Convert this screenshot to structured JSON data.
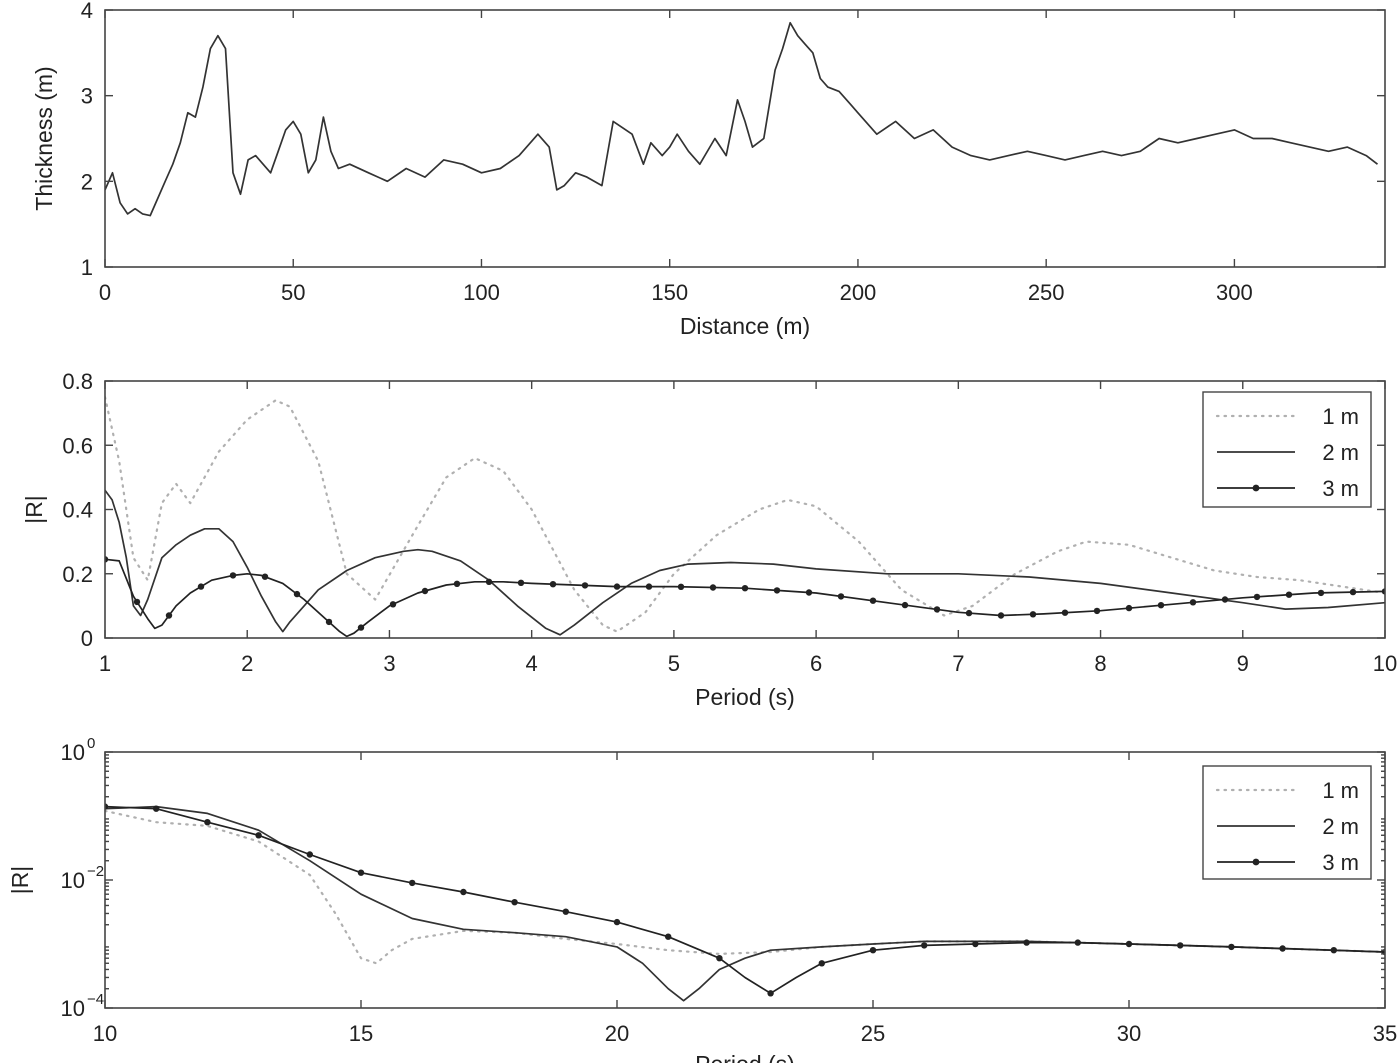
{
  "chart_data": [
    {
      "type": "line",
      "xlabel": "Distance (m)",
      "ylabel": "Thickness (m)",
      "xlim": [
        0,
        340
      ],
      "ylim": [
        1,
        4
      ],
      "xticks": [
        0,
        50,
        100,
        150,
        200,
        250,
        300
      ],
      "yticks": [
        1,
        2,
        3,
        4
      ],
      "grid": false,
      "series": [
        {
          "color": "#333333",
          "style": "solid",
          "x": [
            0,
            2,
            4,
            6,
            8,
            10,
            12,
            14,
            16,
            18,
            20,
            22,
            24,
            26,
            28,
            30,
            32,
            34,
            36,
            38,
            40,
            42,
            44,
            46,
            48,
            50,
            52,
            54,
            56,
            58,
            60,
            62,
            65,
            70,
            75,
            80,
            85,
            90,
            95,
            100,
            105,
            110,
            115,
            118,
            120,
            122,
            125,
            128,
            132,
            135,
            140,
            143,
            145,
            148,
            150,
            152,
            155,
            158,
            162,
            165,
            168,
            170,
            172,
            175,
            178,
            180,
            182,
            184,
            186,
            188,
            190,
            192,
            195,
            198,
            200,
            205,
            210,
            215,
            220,
            225,
            230,
            235,
            240,
            245,
            250,
            255,
            260,
            265,
            270,
            275,
            280,
            285,
            290,
            295,
            300,
            305,
            310,
            315,
            320,
            325,
            330,
            335,
            338
          ],
          "values": [
            1.9,
            2.1,
            1.75,
            1.62,
            1.68,
            1.62,
            1.6,
            1.8,
            2.0,
            2.2,
            2.45,
            2.8,
            2.75,
            3.1,
            3.55,
            3.7,
            3.55,
            2.1,
            1.85,
            2.25,
            2.3,
            2.2,
            2.1,
            2.35,
            2.6,
            2.7,
            2.55,
            2.1,
            2.25,
            2.75,
            2.35,
            2.15,
            2.2,
            2.1,
            2.0,
            2.15,
            2.05,
            2.25,
            2.2,
            2.1,
            2.15,
            2.3,
            2.55,
            2.4,
            1.9,
            1.95,
            2.1,
            2.05,
            1.95,
            2.7,
            2.55,
            2.2,
            2.45,
            2.3,
            2.4,
            2.55,
            2.35,
            2.2,
            2.5,
            2.3,
            2.95,
            2.7,
            2.4,
            2.5,
            3.3,
            3.55,
            3.85,
            3.7,
            3.6,
            3.5,
            3.2,
            3.1,
            3.05,
            2.9,
            2.8,
            2.55,
            2.7,
            2.5,
            2.6,
            2.4,
            2.3,
            2.25,
            2.3,
            2.35,
            2.3,
            2.25,
            2.3,
            2.35,
            2.3,
            2.35,
            2.5,
            2.45,
            2.5,
            2.55,
            2.6,
            2.5,
            2.5,
            2.45,
            2.4,
            2.35,
            2.4,
            2.3,
            2.2
          ]
        }
      ]
    },
    {
      "type": "line",
      "xlabel": "Period (s)",
      "ylabel": "|R|",
      "xlim": [
        1,
        10
      ],
      "ylim": [
        0,
        0.8
      ],
      "xticks": [
        1,
        2,
        3,
        4,
        5,
        6,
        7,
        8,
        9,
        10
      ],
      "yticks": [
        0,
        0.2,
        0.4,
        0.6,
        0.8
      ],
      "grid": false,
      "legend": "top-right",
      "series": [
        {
          "name": "1 m",
          "color": "#b0b0b0",
          "style": "dotted",
          "x": [
            1,
            1.1,
            1.2,
            1.3,
            1.4,
            1.5,
            1.6,
            1.8,
            2.0,
            2.2,
            2.3,
            2.5,
            2.7,
            2.9,
            3.2,
            3.4,
            3.6,
            3.8,
            4.0,
            4.3,
            4.5,
            4.6,
            4.8,
            5.0,
            5.3,
            5.6,
            5.8,
            6.0,
            6.3,
            6.6,
            6.9,
            7.1,
            7.4,
            7.7,
            7.9,
            8.2,
            8.5,
            8.8,
            9.1,
            9.4,
            9.7,
            10
          ],
          "values": [
            0.75,
            0.55,
            0.25,
            0.18,
            0.42,
            0.48,
            0.42,
            0.58,
            0.68,
            0.74,
            0.72,
            0.55,
            0.2,
            0.12,
            0.35,
            0.5,
            0.56,
            0.52,
            0.4,
            0.15,
            0.04,
            0.02,
            0.08,
            0.2,
            0.32,
            0.4,
            0.43,
            0.41,
            0.3,
            0.15,
            0.07,
            0.1,
            0.2,
            0.27,
            0.3,
            0.29,
            0.25,
            0.21,
            0.19,
            0.18,
            0.16,
            0.14
          ]
        },
        {
          "name": "2 m",
          "color": "#333333",
          "style": "solid",
          "x": [
            1,
            1.05,
            1.1,
            1.15,
            1.2,
            1.25,
            1.3,
            1.4,
            1.5,
            1.6,
            1.7,
            1.8,
            1.9,
            2.0,
            2.1,
            2.2,
            2.25,
            2.3,
            2.4,
            2.5,
            2.7,
            2.9,
            3.1,
            3.2,
            3.3,
            3.5,
            3.7,
            3.9,
            4.1,
            4.2,
            4.3,
            4.5,
            4.7,
            4.9,
            5.1,
            5.4,
            5.7,
            6.0,
            6.5,
            7.0,
            7.5,
            8.0,
            8.5,
            9.0,
            9.3,
            9.6,
            10
          ],
          "values": [
            0.46,
            0.43,
            0.36,
            0.25,
            0.1,
            0.07,
            0.12,
            0.25,
            0.29,
            0.32,
            0.34,
            0.34,
            0.3,
            0.22,
            0.13,
            0.05,
            0.02,
            0.05,
            0.1,
            0.15,
            0.21,
            0.25,
            0.27,
            0.275,
            0.27,
            0.24,
            0.18,
            0.1,
            0.03,
            0.01,
            0.04,
            0.11,
            0.17,
            0.21,
            0.23,
            0.235,
            0.23,
            0.215,
            0.2,
            0.2,
            0.19,
            0.17,
            0.14,
            0.11,
            0.09,
            0.095,
            0.11
          ]
        },
        {
          "name": "3 m",
          "color": "#222222",
          "style": "solid-dots",
          "x": [
            1,
            1.1,
            1.2,
            1.3,
            1.35,
            1.4,
            1.5,
            1.6,
            1.75,
            1.9,
            2.0,
            2.1,
            2.25,
            2.4,
            2.55,
            2.65,
            2.7,
            2.75,
            2.85,
            3.0,
            3.2,
            3.4,
            3.6,
            3.8,
            4.0,
            4.3,
            4.6,
            5.0,
            5.5,
            6.0,
            6.5,
            7.0,
            7.3,
            7.6,
            8.0,
            8.5,
            9.0,
            9.5,
            10
          ],
          "values": [
            0.245,
            0.24,
            0.13,
            0.06,
            0.03,
            0.04,
            0.1,
            0.14,
            0.18,
            0.195,
            0.2,
            0.195,
            0.17,
            0.12,
            0.06,
            0.02,
            0.005,
            0.015,
            0.05,
            0.1,
            0.14,
            0.165,
            0.175,
            0.175,
            0.17,
            0.165,
            0.16,
            0.16,
            0.155,
            0.14,
            0.11,
            0.08,
            0.07,
            0.075,
            0.085,
            0.105,
            0.125,
            0.14,
            0.145
          ]
        }
      ]
    },
    {
      "type": "line",
      "xlabel": "Period (s)",
      "ylabel": "|R|",
      "xlim": [
        10,
        35
      ],
      "ylim": [
        0.0001,
        1
      ],
      "yscale": "log",
      "xticks": [
        10,
        15,
        20,
        25,
        30,
        35
      ],
      "yticks": [
        0.0001,
        0.01,
        1
      ],
      "ytick_labels": [
        {
          "base": "10",
          "exp": "−4"
        },
        {
          "base": "10",
          "exp": "−2"
        },
        {
          "base": "10",
          "exp": "0"
        }
      ],
      "grid": false,
      "legend": "top-right",
      "series": [
        {
          "name": "1 m",
          "color": "#b0b0b0",
          "style": "dotted",
          "x": [
            10,
            11,
            12,
            13,
            14,
            14.5,
            15,
            15.3,
            15.6,
            16,
            17,
            18,
            19,
            20,
            21,
            22,
            23,
            24,
            25,
            26,
            28,
            30,
            32,
            35
          ],
          "values": [
            0.12,
            0.08,
            0.07,
            0.04,
            0.012,
            0.003,
            0.0006,
            0.0005,
            0.0008,
            0.0012,
            0.0016,
            0.0015,
            0.0012,
            0.001,
            0.0008,
            0.0007,
            0.00075,
            0.0009,
            0.001,
            0.0011,
            0.0011,
            0.001,
            0.0009,
            0.00075
          ]
        },
        {
          "name": "2 m",
          "color": "#333333",
          "style": "solid",
          "x": [
            10,
            11,
            12,
            13,
            14,
            15,
            16,
            17,
            18,
            19,
            20,
            20.5,
            21,
            21.3,
            21.6,
            22,
            22.5,
            23,
            24,
            25,
            26,
            27,
            28,
            30,
            32,
            35
          ],
          "values": [
            0.13,
            0.14,
            0.11,
            0.06,
            0.02,
            0.006,
            0.0025,
            0.0017,
            0.0015,
            0.0013,
            0.0009,
            0.0005,
            0.0002,
            0.00013,
            0.0002,
            0.0004,
            0.0006,
            0.0008,
            0.0009,
            0.001,
            0.0011,
            0.0011,
            0.0011,
            0.001,
            0.0009,
            0.00075
          ]
        },
        {
          "name": "3 m",
          "color": "#222222",
          "style": "solid-dots",
          "x": [
            10,
            11,
            12,
            13,
            14,
            15,
            16,
            17,
            18,
            19,
            20,
            21,
            22,
            22.5,
            23,
            23.5,
            24,
            25,
            26,
            27,
            28,
            29,
            30,
            31,
            32,
            33,
            34,
            35
          ],
          "values": [
            0.14,
            0.13,
            0.08,
            0.05,
            0.025,
            0.013,
            0.009,
            0.0065,
            0.0045,
            0.0032,
            0.0022,
            0.0013,
            0.0006,
            0.0003,
            0.00017,
            0.0003,
            0.0005,
            0.0008,
            0.00095,
            0.001,
            0.00105,
            0.00105,
            0.001,
            0.00095,
            0.0009,
            0.00085,
            0.0008,
            0.00075
          ]
        }
      ]
    }
  ]
}
